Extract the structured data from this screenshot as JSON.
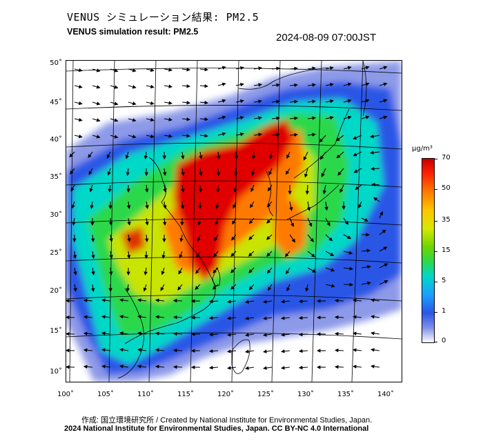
{
  "title_jp": "VENUS シミュレーション結果: PM2.5",
  "title_en": "VENUS simulation result: PM2.5",
  "timestamp": "2024-08-09 07:00JST",
  "map": {
    "lat_labels": [
      "50˚",
      "45˚",
      "40˚",
      "35˚",
      "30˚",
      "25˚",
      "20˚",
      "15˚",
      "10˚"
    ],
    "lon_labels": [
      "100˚",
      "105˚",
      "110˚",
      "115˚",
      "120˚",
      "125˚",
      "130˚",
      "135˚",
      "140˚"
    ],
    "lat_values": [
      50,
      45,
      40,
      35,
      30,
      25,
      20,
      15,
      10
    ],
    "lon_values": [
      100,
      105,
      110,
      115,
      120,
      125,
      130,
      135,
      140
    ],
    "colors": {
      "very_high": "#e00000",
      "high": "#ff7a00",
      "medium": "#c8e400",
      "moderate": "#2cd84a",
      "low": "#00d8c8",
      "very_low": "#2a57e6",
      "minimal": "#7f8fe8"
    }
  },
  "colorbar": {
    "unit": "μg/m³",
    "ticks": [
      "70",
      "50",
      "35",
      "15",
      "5",
      "1",
      "0"
    ],
    "tick_values": [
      70,
      50,
      35,
      15,
      5,
      1,
      0
    ]
  },
  "credits": {
    "line1": "作成: 国立環境研究所 / Created by National Institute for Environmental Studies, Japan.",
    "line2": "2024 National Institute for Environmental Studies, Japan. CC BY-NC 4.0 International"
  }
}
